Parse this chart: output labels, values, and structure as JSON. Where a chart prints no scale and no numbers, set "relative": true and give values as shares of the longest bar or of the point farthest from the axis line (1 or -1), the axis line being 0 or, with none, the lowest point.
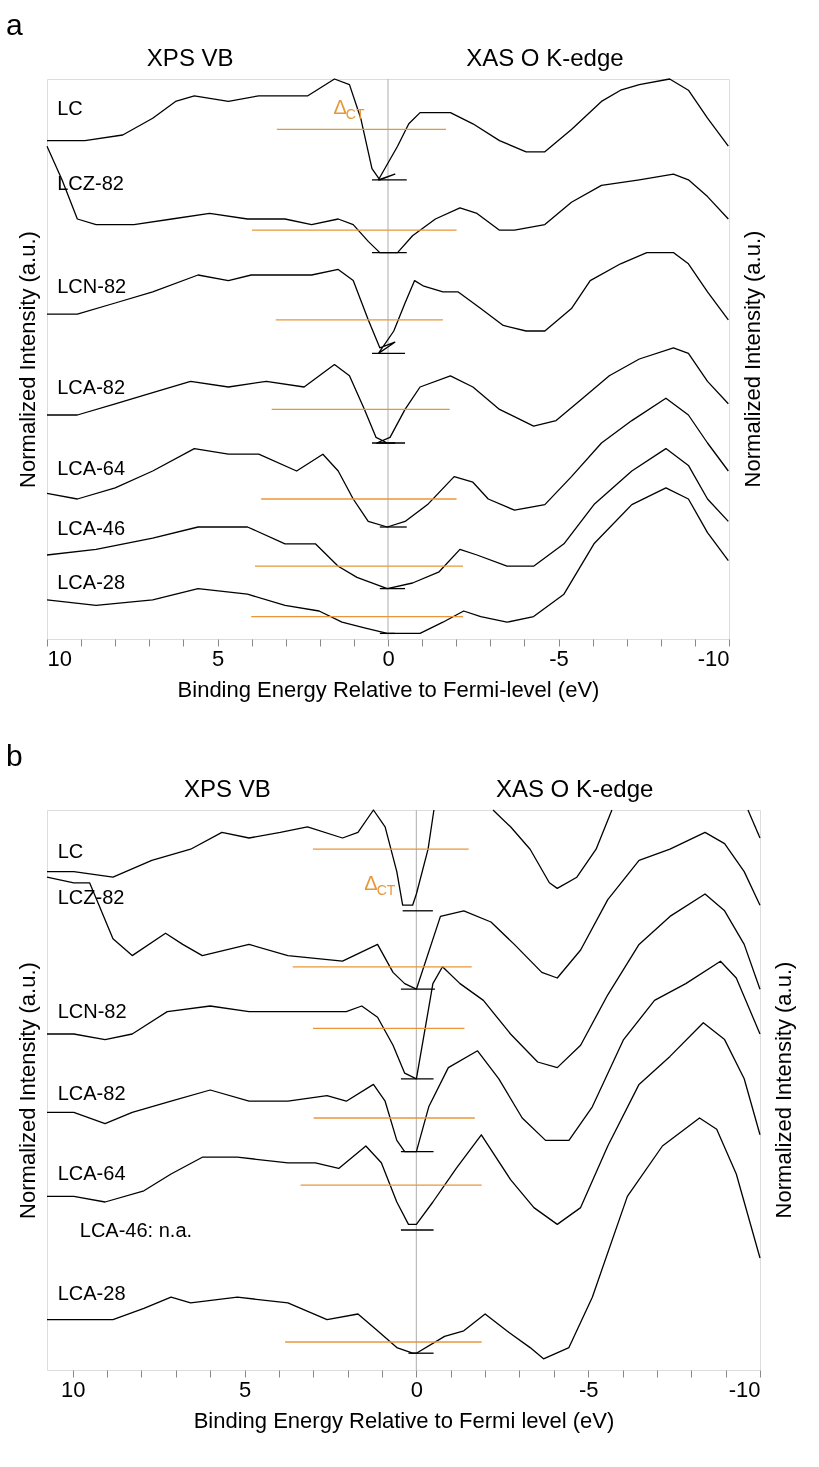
{
  "chart_data": [
    {
      "type": "line",
      "title": "a",
      "xlabel": "Binding Energy Relative to Fermi-level (eV)",
      "ylabel": "Normalized Intensity (a.u.)",
      "y2label": "Normalized Intensity (a.u.)",
      "relative": true,
      "grid": false,
      "xlim": [
        10,
        -10
      ],
      "xticks": [
        10,
        {
          "value": 9,
          "label": null
        },
        {
          "value": 8,
          "label": null
        },
        {
          "value": 7,
          "label": null
        },
        {
          "value": 6,
          "label": null
        },
        5,
        {
          "value": 4,
          "label": null
        },
        {
          "value": 3,
          "label": null
        },
        {
          "value": 2,
          "label": null
        },
        {
          "value": 1,
          "label": null
        },
        0,
        {
          "value": -1,
          "label": null
        },
        {
          "value": -2,
          "label": null
        },
        {
          "value": -3,
          "label": null
        },
        {
          "value": -4,
          "label": null
        },
        -5,
        {
          "value": -6,
          "label": null
        },
        {
          "value": -7,
          "label": null
        },
        {
          "value": -8,
          "label": null
        },
        {
          "value": -9,
          "label": null
        },
        -10
      ],
      "ref_lines": [
        {
          "axis": "x",
          "value": 0,
          "color": "#bbbbbb"
        }
      ],
      "annotations": [
        "XPS VB",
        "XAS O K-edge",
        "Δ$_{CT}$"
      ],
      "series": [
        {
          "name": "LC",
          "color": "#000000",
          "x": [
            10,
            8.89,
            7.78,
            6.9,
            6.23,
            5.68,
            4.68,
            3.79,
            3.02,
            2.35,
            1.57,
            1.13,
            0.8,
            0.47,
            0.24,
            -0.2,
            0.28,
            -0.28,
            -0.61,
            -0.94,
            -1.83,
            -2.49,
            -3.27,
            -4.05,
            -4.6,
            -5.38,
            -6.26,
            -6.82,
            -7.37,
            -8.26,
            -8.81,
            -9.37,
            -9.98
          ],
          "values": [
            0.89,
            0.89,
            0.9,
            0.93,
            0.96,
            0.97,
            0.96,
            0.97,
            0.97,
            0.97,
            1.0,
            0.99,
            0.93,
            0.84,
            0.82,
            0.83,
            0.82,
            0.88,
            0.92,
            0.94,
            0.94,
            0.92,
            0.89,
            0.87,
            0.87,
            0.91,
            0.96,
            0.98,
            0.99,
            1.0,
            0.98,
            0.93,
            0.88
          ]
        },
        {
          "name": "LCZ-82",
          "color": "#000000",
          "x": [
            10,
            9.56,
            9.11,
            8.56,
            7.45,
            6.34,
            5.23,
            4.12,
            3.02,
            2.24,
            1.46,
            1.02,
            0.58,
            0.24,
            -0.2,
            -0.28,
            -0.72,
            -1.39,
            -2.11,
            -2.61,
            -3.27,
            -3.71,
            -4.6,
            -5.38,
            -6.26,
            -7.37,
            -8.37,
            -8.81,
            -9.37,
            -9.98
          ],
          "values": [
            0.88,
            0.82,
            0.75,
            0.74,
            0.74,
            0.75,
            0.76,
            0.75,
            0.75,
            0.74,
            0.75,
            0.74,
            0.71,
            0.69,
            0.69,
            0.69,
            0.72,
            0.75,
            0.77,
            0.76,
            0.73,
            0.73,
            0.74,
            0.78,
            0.81,
            0.82,
            0.83,
            0.82,
            0.79,
            0.75
          ]
        },
        {
          "name": "LCN-82",
          "color": "#000000",
          "x": [
            10,
            9.11,
            8.0,
            6.9,
            5.57,
            4.68,
            4.01,
            3.13,
            2.24,
            1.46,
            1.02,
            0.58,
            0.24,
            -0.2,
            0.28,
            -0.17,
            -0.5,
            -0.78,
            -1.05,
            -1.61,
            -2.05,
            -2.72,
            -3.38,
            -4.05,
            -4.6,
            -5.38,
            -5.93,
            -6.82,
            -7.59,
            -8.37,
            -8.81,
            -9.37,
            -9.98
          ],
          "values": [
            0.58,
            0.58,
            0.6,
            0.62,
            0.65,
            0.64,
            0.65,
            0.65,
            0.65,
            0.66,
            0.64,
            0.57,
            0.52,
            0.53,
            0.51,
            0.55,
            0.6,
            0.64,
            0.63,
            0.62,
            0.62,
            0.59,
            0.56,
            0.55,
            0.55,
            0.59,
            0.64,
            0.67,
            0.69,
            0.69,
            0.67,
            0.62,
            0.57
          ]
        },
        {
          "name": "LCA-82",
          "color": "#000000",
          "x": [
            10,
            9.11,
            8.0,
            6.9,
            5.79,
            4.68,
            3.57,
            2.46,
            1.57,
            1.13,
            0.69,
            0.35,
            0.02,
            -0.2,
            0.33,
            -0.06,
            -0.5,
            -0.94,
            -1.83,
            -2.49,
            -3.27,
            -4.27,
            -4.93,
            -5.71,
            -6.49,
            -7.37,
            -8.37,
            -8.81,
            -9.37,
            -9.98
          ],
          "values": [
            0.4,
            0.4,
            0.42,
            0.44,
            0.46,
            0.45,
            0.46,
            0.45,
            0.49,
            0.47,
            0.41,
            0.36,
            0.35,
            0.35,
            0.35,
            0.36,
            0.41,
            0.45,
            0.47,
            0.45,
            0.41,
            0.38,
            0.39,
            0.43,
            0.47,
            0.5,
            0.52,
            0.51,
            0.46,
            0.42
          ]
        },
        {
          "name": "LCA-64",
          "color": "#000000",
          "x": [
            10,
            9.11,
            8.0,
            6.9,
            5.68,
            4.68,
            3.79,
            2.68,
            1.91,
            1.46,
            1.02,
            0.58,
            0.02,
            -0.5,
            -1.16,
            -1.94,
            -2.49,
            -2.94,
            -3.71,
            -4.6,
            -5.38,
            -6.26,
            -7.15,
            -8.15,
            -8.81,
            -9.37,
            -9.98
          ],
          "values": [
            0.26,
            0.25,
            0.27,
            0.3,
            0.34,
            0.33,
            0.33,
            0.3,
            0.33,
            0.3,
            0.25,
            0.21,
            0.2,
            0.21,
            0.24,
            0.29,
            0.28,
            0.25,
            0.23,
            0.24,
            0.29,
            0.35,
            0.39,
            0.43,
            0.4,
            0.35,
            0.3
          ]
        },
        {
          "name": "LCA-46",
          "color": "#000000",
          "x": [
            10,
            8.56,
            6.9,
            5.57,
            4.12,
            3.02,
            2.13,
            1.46,
            0.91,
            0.02,
            -0.72,
            -1.5,
            -2.11,
            -2.61,
            -3.49,
            -4.27,
            -5.16,
            -6.04,
            -7.15,
            -8.15,
            -8.81,
            -9.37,
            -9.98
          ],
          "values": [
            0.15,
            0.16,
            0.18,
            0.2,
            0.2,
            0.17,
            0.17,
            0.13,
            0.11,
            0.09,
            0.1,
            0.12,
            0.16,
            0.15,
            0.13,
            0.13,
            0.17,
            0.24,
            0.3,
            0.34,
            0.31,
            0.25,
            0.21
          ]
        },
        {
          "name": "LCA-28",
          "color": "#000000",
          "x": [
            10,
            8.56,
            6.9,
            5.57,
            4.12,
            3.02,
            2.02,
            1.35,
            0.69,
            0.02,
            -0.94,
            -1.61,
            -2.22,
            -2.72,
            -3.49,
            -4.27,
            -5.16,
            -6.04,
            -7.15,
            -8.15,
            -8.81,
            -9.37,
            -9.98
          ],
          "values": [
            0.07,
            0.06,
            0.07,
            0.09,
            0.08,
            0.06,
            0.05,
            0.03,
            0.02,
            0.01,
            0.01,
            0.03,
            0.05,
            0.04,
            0.03,
            0.04,
            0.08,
            0.17,
            0.24,
            0.27,
            0.25,
            0.19,
            0.14
          ]
        },
        {
          "color": "#e8963a",
          "x": [
            3.26,
            -1.7
          ],
          "values": [
            0.91,
            0.91
          ]
        },
        {
          "color": "#e8963a",
          "x": [
            3.99,
            -2.01
          ],
          "values": [
            0.73,
            0.73
          ]
        },
        {
          "color": "#e8963a",
          "x": [
            3.29,
            -1.61
          ],
          "values": [
            0.57,
            0.57
          ]
        },
        {
          "color": "#e8963a",
          "x": [
            3.41,
            -1.81
          ],
          "values": [
            0.41,
            0.41
          ]
        },
        {
          "color": "#e8963a",
          "x": [
            3.72,
            -2.01
          ],
          "values": [
            0.25,
            0.25
          ]
        },
        {
          "color": "#e8963a",
          "x": [
            3.9,
            -2.2
          ],
          "values": [
            0.13,
            0.13
          ]
        },
        {
          "color": "#e8963a",
          "x": [
            4.01,
            -2.2
          ],
          "values": [
            0.04,
            0.04
          ]
        },
        {
          "color": "#000000",
          "x": [
            0.47,
            -0.55
          ],
          "values": [
            0.82,
            0.82
          ]
        },
        {
          "color": "#000000",
          "x": [
            0.47,
            -0.55
          ],
          "values": [
            0.69,
            0.69
          ]
        },
        {
          "color": "#000000",
          "x": [
            0.47,
            -0.5
          ],
          "values": [
            0.51,
            0.51
          ]
        },
        {
          "color": "#000000",
          "x": [
            0.47,
            -0.5
          ],
          "values": [
            0.35,
            0.35
          ]
        },
        {
          "color": "#000000",
          "x": [
            0.24,
            -0.55
          ],
          "values": [
            0.2,
            0.2
          ]
        },
        {
          "color": "#000000",
          "x": [
            0.24,
            -0.5
          ],
          "values": [
            0.09,
            0.09
          ]
        },
        {
          "color": "#000000",
          "x": [
            0.24,
            -0.2
          ],
          "values": [
            0.01,
            0.01
          ]
        }
      ]
    },
    {
      "type": "line",
      "title": "b",
      "xlabel": "Binding Energy Relative to Fermi level (eV)",
      "ylabel": "Normalized Intensity (a.u.)",
      "y2label": "Normalized Intensity (a.u.)",
      "relative": true,
      "grid": false,
      "xlim": [
        10.75,
        -10
      ],
      "xticks": [
        10,
        {
          "value": 9,
          "label": null
        },
        {
          "value": 8,
          "label": null
        },
        {
          "value": 7,
          "label": null
        },
        {
          "value": 6,
          "label": null
        },
        5,
        {
          "value": 4,
          "label": null
        },
        {
          "value": 3,
          "label": null
        },
        {
          "value": 2,
          "label": null
        },
        {
          "value": 1,
          "label": null
        },
        0,
        {
          "value": -1,
          "label": null
        },
        {
          "value": -2,
          "label": null
        },
        {
          "value": -3,
          "label": null
        },
        {
          "value": -4,
          "label": null
        },
        -5,
        {
          "value": -6,
          "label": null
        },
        {
          "value": -7,
          "label": null
        },
        {
          "value": -8,
          "label": null
        },
        {
          "value": -9,
          "label": null
        },
        -10
      ],
      "ref_lines": [
        {
          "axis": "x",
          "value": 0,
          "color": "#bbbbbb"
        }
      ],
      "annotations": [
        "XPS VB",
        "XAS O K-edge",
        "Δ$_{CT}$",
        "LCA-46: n.a."
      ],
      "series": [
        {
          "name": "LC",
          "color": "#000000",
          "x": [
            10.75,
            9.97,
            8.83,
            7.7,
            6.57,
            5.66,
            4.87,
            3.96,
            3.17,
            2.15,
            1.7,
            1.25,
            0.91,
            0.57,
            0.4,
            0.11,
            0,
            -0.34,
            -0.51,
            -1.4,
            -2.23,
            -2.74,
            -3.31,
            -3.87,
            -4.1,
            -4.67,
            -5.23,
            -5.69,
            -7.5,
            -9.65,
            -10.0
          ],
          "values": [
            0.89,
            0.89,
            0.88,
            0.91,
            0.93,
            0.96,
            0.95,
            0.96,
            0.97,
            0.95,
            0.96,
            1.0,
            0.97,
            0.89,
            0.83,
            0.83,
            0.85,
            0.93,
            1.0,
            null,
            1.0,
            0.97,
            0.93,
            0.87,
            0.86,
            0.88,
            0.93,
            1.0,
            null,
            1.0,
            0.95
          ]
        },
        {
          "name": "LCZ-82",
          "color": "#000000",
          "x": [
            10.75,
            9.97,
            9.51,
            8.83,
            8.27,
            7.3,
            6.8,
            6.23,
            4.87,
            3.74,
            2.15,
            1.13,
            0.68,
            0.34,
            0,
            -0.7,
            -1.38,
            -2.17,
            -2.85,
            -3.65,
            -4.1,
            -4.78,
            -5.57,
            -6.48,
            -7.38,
            -8.4,
            -8.97,
            -9.54,
            -10.0
          ],
          "values": [
            0.88,
            0.87,
            0.87,
            0.77,
            0.74,
            0.78,
            0.76,
            0.74,
            0.76,
            0.74,
            0.73,
            0.76,
            0.71,
            0.69,
            0.68,
            0.81,
            0.82,
            0.8,
            0.76,
            0.71,
            0.7,
            0.75,
            0.84,
            0.91,
            0.93,
            0.96,
            0.94,
            0.89,
            0.83
          ]
        },
        {
          "name": "LCN-82",
          "color": "#000000",
          "x": [
            10.75,
            9.97,
            9.06,
            8.27,
            7.25,
            6.0,
            4.87,
            3.74,
            2.6,
            2.04,
            1.59,
            1.13,
            0.68,
            0.34,
            0,
            -0.34,
            -0.48,
            -0.76,
            -1.27,
            -1.95,
            -2.74,
            -3.53,
            -4.1,
            -4.78,
            -5.57,
            -6.48,
            -7.38,
            -8.4,
            -8.97,
            -9.54,
            -10.0
          ],
          "values": [
            0.6,
            0.6,
            0.59,
            0.6,
            0.64,
            0.65,
            0.64,
            0.64,
            0.64,
            0.64,
            0.65,
            0.63,
            0.58,
            0.53,
            0.52,
            0.64,
            0.69,
            0.72,
            0.69,
            0.66,
            0.6,
            0.55,
            0.54,
            0.58,
            0.67,
            0.76,
            0.81,
            0.85,
            0.82,
            0.76,
            0.68
          ]
        },
        {
          "name": "LCA-82",
          "color": "#000000",
          "x": [
            10.75,
            9.97,
            9.06,
            8.27,
            7.14,
            6.0,
            4.87,
            3.74,
            2.6,
            2.04,
            1.25,
            0.91,
            0.57,
            0.34,
            0,
            -0.36,
            -0.93,
            -1.78,
            -2.4,
            -3.08,
            -3.76,
            -4.44,
            -5.12,
            -6.03,
            -6.93,
            -7.84,
            -8.85,
            -9.31,
            -10.0
          ],
          "values": [
            0.46,
            0.46,
            0.44,
            0.46,
            0.48,
            0.5,
            0.48,
            0.48,
            0.49,
            0.48,
            0.51,
            0.48,
            0.41,
            0.39,
            0.39,
            0.47,
            0.54,
            0.57,
            0.52,
            0.45,
            0.41,
            0.41,
            0.47,
            0.59,
            0.66,
            0.69,
            0.73,
            0.7,
            0.6
          ]
        },
        {
          "name": "LCA-64",
          "color": "#000000",
          "x": [
            10.75,
            9.97,
            9.06,
            7.93,
            7.14,
            6.23,
            5.21,
            3.74,
            2.94,
            2.26,
            1.47,
            1.02,
            0.57,
            0.23,
            0,
            -0.48,
            -1.16,
            -1.89,
            -2.74,
            -3.42,
            -4.1,
            -4.78,
            -5.57,
            -6.48,
            -7.38,
            -8.35,
            -8.97,
            -9.54,
            -10.0
          ],
          "values": [
            0.31,
            0.31,
            0.3,
            0.32,
            0.35,
            0.38,
            0.38,
            0.37,
            0.37,
            0.36,
            0.4,
            0.37,
            0.3,
            0.26,
            0.26,
            0.3,
            0.36,
            0.42,
            0.34,
            0.29,
            0.26,
            0.29,
            0.4,
            0.51,
            0.56,
            0.62,
            0.59,
            0.52,
            0.42
          ]
        },
        {
          "name": "LCA-28",
          "color": "#000000",
          "x": [
            10.75,
            9.97,
            8.83,
            7.93,
            7.14,
            6.57,
            5.21,
            3.74,
            2.6,
            1.7,
            1.13,
            0.57,
            0.11,
            0,
            -0.82,
            -1.38,
            -2.0,
            -2.63,
            -3.31,
            -3.7,
            -4.44,
            -5.12,
            -6.14,
            -7.16,
            -8.24,
            -8.74,
            -9.31,
            -10.0
          ],
          "values": [
            0.09,
            0.09,
            0.09,
            0.11,
            0.13,
            0.12,
            0.13,
            0.12,
            0.09,
            0.1,
            0.07,
            0.04,
            0.03,
            0.03,
            0.06,
            0.07,
            0.1,
            0.07,
            0.04,
            0.02,
            0.04,
            0.13,
            0.31,
            0.4,
            0.45,
            0.43,
            0.35,
            0.2
          ]
        },
        {
          "color": "#e8963a",
          "x": [
            3.01,
            -1.52
          ],
          "values": [
            0.93,
            0.93
          ]
        },
        {
          "color": "#e8963a",
          "x": [
            3.6,
            -1.61
          ],
          "values": [
            0.72,
            0.72
          ]
        },
        {
          "color": "#e8963a",
          "x": [
            3.01,
            -1.4
          ],
          "values": [
            0.61,
            0.61
          ]
        },
        {
          "color": "#e8963a",
          "x": [
            2.99,
            -1.7
          ],
          "values": [
            0.45,
            0.45
          ]
        },
        {
          "color": "#e8963a",
          "x": [
            3.37,
            -1.9
          ],
          "values": [
            0.33,
            0.33
          ]
        },
        {
          "color": "#e8963a",
          "x": [
            3.82,
            -1.9
          ],
          "values": [
            0.05,
            0.05
          ]
        },
        {
          "color": "#000000",
          "x": [
            0.4,
            -0.48
          ],
          "values": [
            0.82,
            0.82
          ]
        },
        {
          "color": "#000000",
          "x": [
            0.45,
            -0.54
          ],
          "values": [
            0.68,
            0.68
          ]
        },
        {
          "color": "#000000",
          "x": [
            0.45,
            -0.5
          ],
          "values": [
            0.52,
            0.52
          ]
        },
        {
          "color": "#000000",
          "x": [
            0.45,
            -0.5
          ],
          "values": [
            0.39,
            0.39
          ]
        },
        {
          "color": "#000000",
          "x": [
            0.45,
            -0.5
          ],
          "values": [
            0.25,
            0.25
          ]
        },
        {
          "color": "#000000",
          "x": [
            0.23,
            -0.5
          ],
          "values": [
            0.03,
            0.03
          ]
        }
      ]
    }
  ]
}
